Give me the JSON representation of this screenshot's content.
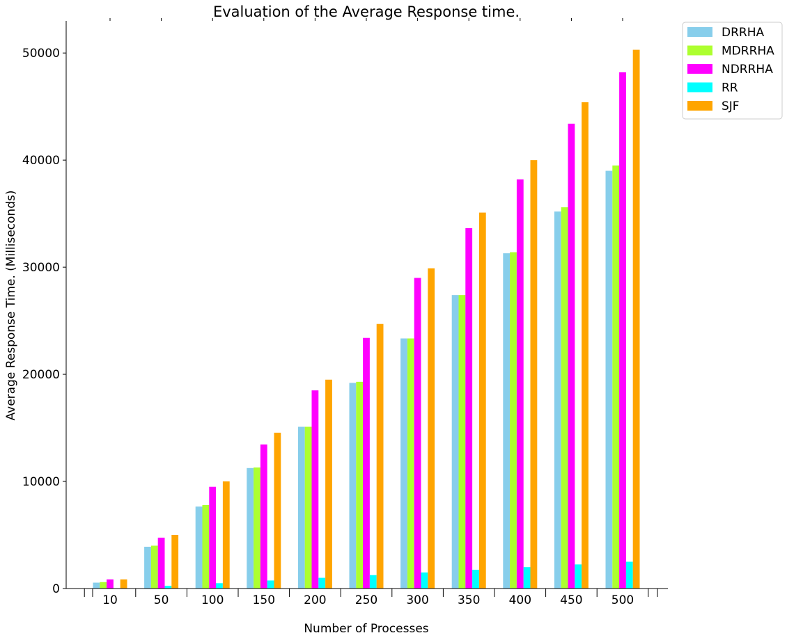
{
  "chart_data": {
    "type": "bar",
    "title": "Evaluation of the Average Response time.",
    "xlabel": "Number of Processes",
    "ylabel": "Average Response Time. (Milliseconds)",
    "categories": [
      "10",
      "50",
      "100",
      "150",
      "200",
      "250",
      "300",
      "350",
      "400",
      "450",
      "500"
    ],
    "ylim": [
      0,
      53000
    ],
    "yticks": [
      0,
      10000,
      20000,
      30000,
      40000,
      50000
    ],
    "grid": false,
    "legend_position": "outside-top-right",
    "series": [
      {
        "name": "DRRHA",
        "color": "#87ceeb",
        "values": [
          550,
          3900,
          7650,
          11250,
          15100,
          19200,
          23350,
          27400,
          31300,
          35200,
          39000
        ]
      },
      {
        "name": "MDRRHA",
        "color": "#adff2f",
        "values": [
          600,
          4000,
          7800,
          11300,
          15100,
          19300,
          23350,
          27400,
          31400,
          35600,
          39500
        ]
      },
      {
        "name": "NDRRHA",
        "color": "#ff00ff",
        "values": [
          850,
          4750,
          9500,
          13450,
          18500,
          23400,
          29000,
          33650,
          38200,
          43400,
          48200
        ]
      },
      {
        "name": "RR",
        "color": "#00ffff",
        "values": [
          20,
          250,
          500,
          750,
          1000,
          1250,
          1500,
          1750,
          2000,
          2250,
          2500
        ]
      },
      {
        "name": "SJF",
        "color": "#ffa500",
        "values": [
          850,
          5000,
          10000,
          14550,
          19500,
          24700,
          29900,
          35100,
          40000,
          45400,
          50300
        ]
      }
    ]
  }
}
